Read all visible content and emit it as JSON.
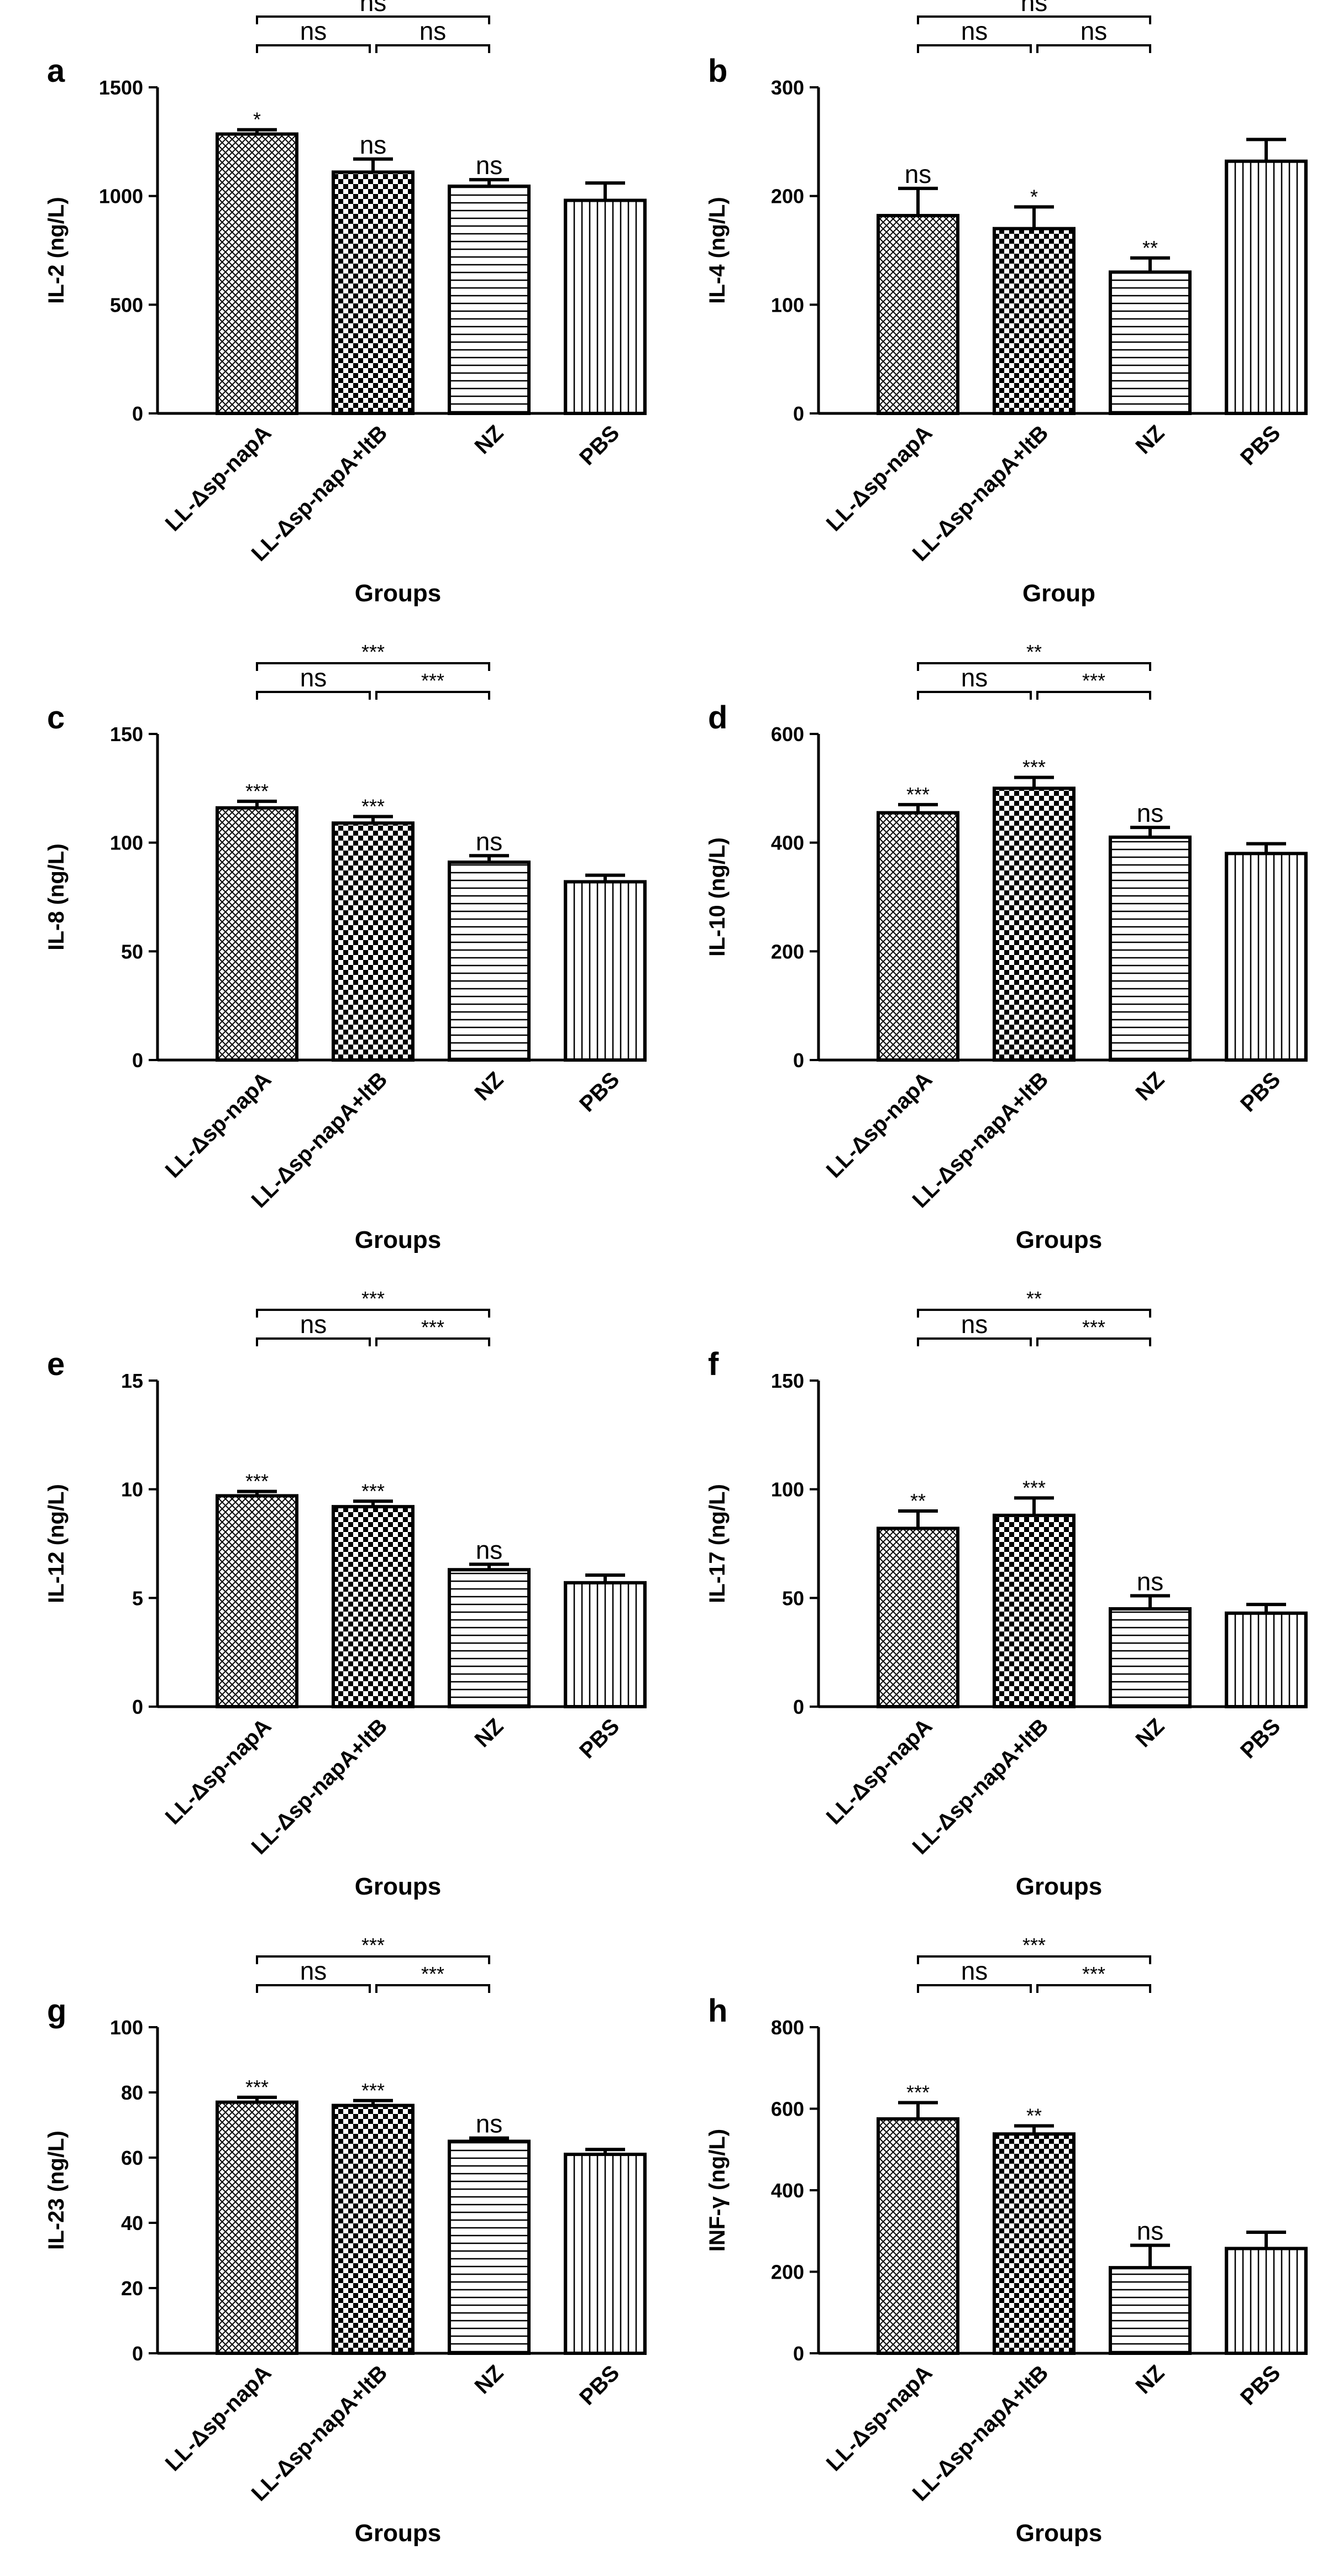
{
  "figure": {
    "categories": [
      "LL-Δsp-napA",
      "LL-Δsp-napA+ltB",
      "NZ",
      "PBS"
    ],
    "pattern_names": [
      "fine-crosshatch",
      "checkerboard",
      "horizontal-lines",
      "vertical-lines"
    ],
    "bar_color": "#ffffff",
    "line_color": "#000000"
  },
  "chart_data": [
    {
      "type": "bar",
      "panel": "a",
      "title": "",
      "ylabel": "IL-2 (ng/L)",
      "xlabel": "Groups",
      "categories": [
        "LL-Δsp-napA",
        "LL-Δsp-napA+ltB",
        "NZ",
        "PBS"
      ],
      "values": [
        1285,
        1110,
        1045,
        980
      ],
      "errors": [
        20,
        60,
        30,
        80
      ],
      "ylim": [
        0,
        1500
      ],
      "yticks": [
        0,
        500,
        1000,
        1500
      ],
      "bar_significance": [
        "*",
        "ns",
        "ns",
        ""
      ],
      "brackets": [
        {
          "from": 0,
          "to": 1,
          "label": "ns",
          "level": 1
        },
        {
          "from": 1,
          "to": 2,
          "label": "ns",
          "level": 1
        },
        {
          "from": 0,
          "to": 2,
          "label": "ns",
          "level": 2
        }
      ]
    },
    {
      "type": "bar",
      "panel": "b",
      "title": "",
      "ylabel": "IL-4 (ng/L)",
      "xlabel": "Group",
      "categories": [
        "LL-Δsp-napA",
        "LL-Δsp-napA+ltB",
        "NZ",
        "PBS"
      ],
      "values": [
        182,
        170,
        130,
        232
      ],
      "errors": [
        25,
        20,
        13,
        20
      ],
      "ylim": [
        0,
        300
      ],
      "yticks": [
        0,
        100,
        200,
        300
      ],
      "bar_significance": [
        "ns",
        "*",
        "**",
        ""
      ],
      "brackets": [
        {
          "from": 0,
          "to": 1,
          "label": "ns",
          "level": 1
        },
        {
          "from": 1,
          "to": 2,
          "label": "ns",
          "level": 1
        },
        {
          "from": 0,
          "to": 2,
          "label": "ns",
          "level": 2
        }
      ]
    },
    {
      "type": "bar",
      "panel": "c",
      "title": "",
      "ylabel": "IL-8 (ng/L)",
      "xlabel": "Groups",
      "categories": [
        "LL-Δsp-napA",
        "LL-Δsp-napA+ltB",
        "NZ",
        "PBS"
      ],
      "values": [
        116,
        109,
        91,
        82
      ],
      "errors": [
        3,
        3,
        3,
        3
      ],
      "ylim": [
        0,
        150
      ],
      "yticks": [
        0,
        50,
        100,
        150
      ],
      "bar_significance": [
        "***",
        "***",
        "ns",
        ""
      ],
      "brackets": [
        {
          "from": 0,
          "to": 1,
          "label": "ns",
          "level": 1
        },
        {
          "from": 1,
          "to": 2,
          "label": "***",
          "level": 1
        },
        {
          "from": 0,
          "to": 2,
          "label": "***",
          "level": 2
        }
      ]
    },
    {
      "type": "bar",
      "panel": "d",
      "title": "",
      "ylabel": "IL-10 (ng/L)",
      "xlabel": "Groups",
      "categories": [
        "LL-Δsp-napA",
        "LL-Δsp-napA+ltB",
        "NZ",
        "PBS"
      ],
      "values": [
        455,
        500,
        410,
        380
      ],
      "errors": [
        15,
        20,
        18,
        18
      ],
      "ylim": [
        0,
        600
      ],
      "yticks": [
        0,
        200,
        400,
        600
      ],
      "bar_significance": [
        "***",
        "***",
        "ns",
        ""
      ],
      "brackets": [
        {
          "from": 0,
          "to": 1,
          "label": "ns",
          "level": 1
        },
        {
          "from": 1,
          "to": 2,
          "label": "***",
          "level": 1
        },
        {
          "from": 0,
          "to": 2,
          "label": "**",
          "level": 2
        }
      ]
    },
    {
      "type": "bar",
      "panel": "e",
      "title": "",
      "ylabel": "IL-12 (ng/L)",
      "xlabel": "Groups",
      "categories": [
        "LL-Δsp-napA",
        "LL-Δsp-napA+ltB",
        "NZ",
        "PBS"
      ],
      "values": [
        9.7,
        9.2,
        6.3,
        5.7
      ],
      "errors": [
        0.2,
        0.25,
        0.25,
        0.35
      ],
      "ylim": [
        0,
        15
      ],
      "yticks": [
        0,
        5,
        10,
        15
      ],
      "bar_significance": [
        "***",
        "***",
        "ns",
        ""
      ],
      "brackets": [
        {
          "from": 0,
          "to": 1,
          "label": "ns",
          "level": 1
        },
        {
          "from": 1,
          "to": 2,
          "label": "***",
          "level": 1
        },
        {
          "from": 0,
          "to": 2,
          "label": "***",
          "level": 2
        }
      ]
    },
    {
      "type": "bar",
      "panel": "f",
      "title": "",
      "ylabel": "IL-17 (ng/L)",
      "xlabel": "Groups",
      "categories": [
        "LL-Δsp-napA",
        "LL-Δsp-napA+ltB",
        "NZ",
        "PBS"
      ],
      "values": [
        82,
        88,
        45,
        43
      ],
      "errors": [
        8,
        8,
        6,
        4
      ],
      "ylim": [
        0,
        150
      ],
      "yticks": [
        0,
        50,
        100,
        150
      ],
      "bar_significance": [
        "**",
        "***",
        "ns",
        ""
      ],
      "brackets": [
        {
          "from": 0,
          "to": 1,
          "label": "ns",
          "level": 1
        },
        {
          "from": 1,
          "to": 2,
          "label": "***",
          "level": 1
        },
        {
          "from": 0,
          "to": 2,
          "label": "**",
          "level": 2
        }
      ]
    },
    {
      "type": "bar",
      "panel": "g",
      "title": "",
      "ylabel": "IL-23 (ng/L)",
      "xlabel": "Groups",
      "categories": [
        "LL-Δsp-napA",
        "LL-Δsp-napA+ltB",
        "NZ",
        "PBS"
      ],
      "values": [
        77,
        76,
        65,
        61
      ],
      "errors": [
        1.5,
        1.5,
        1,
        1.5
      ],
      "ylim": [
        0,
        100
      ],
      "yticks": [
        0,
        20,
        40,
        60,
        80,
        100
      ],
      "bar_significance": [
        "***",
        "***",
        "ns",
        ""
      ],
      "brackets": [
        {
          "from": 0,
          "to": 1,
          "label": "ns",
          "level": 1
        },
        {
          "from": 1,
          "to": 2,
          "label": "***",
          "level": 1
        },
        {
          "from": 0,
          "to": 2,
          "label": "***",
          "level": 2
        }
      ]
    },
    {
      "type": "bar",
      "panel": "h",
      "title": "",
      "ylabel": "INF-γ (ng/L)",
      "xlabel": "Groups",
      "categories": [
        "LL-Δsp-napA",
        "LL-Δsp-napA+ltB",
        "NZ",
        "PBS"
      ],
      "values": [
        575,
        538,
        210,
        257
      ],
      "errors": [
        40,
        20,
        55,
        40
      ],
      "ylim": [
        0,
        800
      ],
      "yticks": [
        0,
        200,
        400,
        600,
        800
      ],
      "bar_significance": [
        "***",
        "**",
        "ns",
        ""
      ],
      "brackets": [
        {
          "from": 0,
          "to": 1,
          "label": "ns",
          "level": 1
        },
        {
          "from": 1,
          "to": 2,
          "label": "***",
          "level": 1
        },
        {
          "from": 0,
          "to": 2,
          "label": "***",
          "level": 2
        }
      ]
    }
  ]
}
